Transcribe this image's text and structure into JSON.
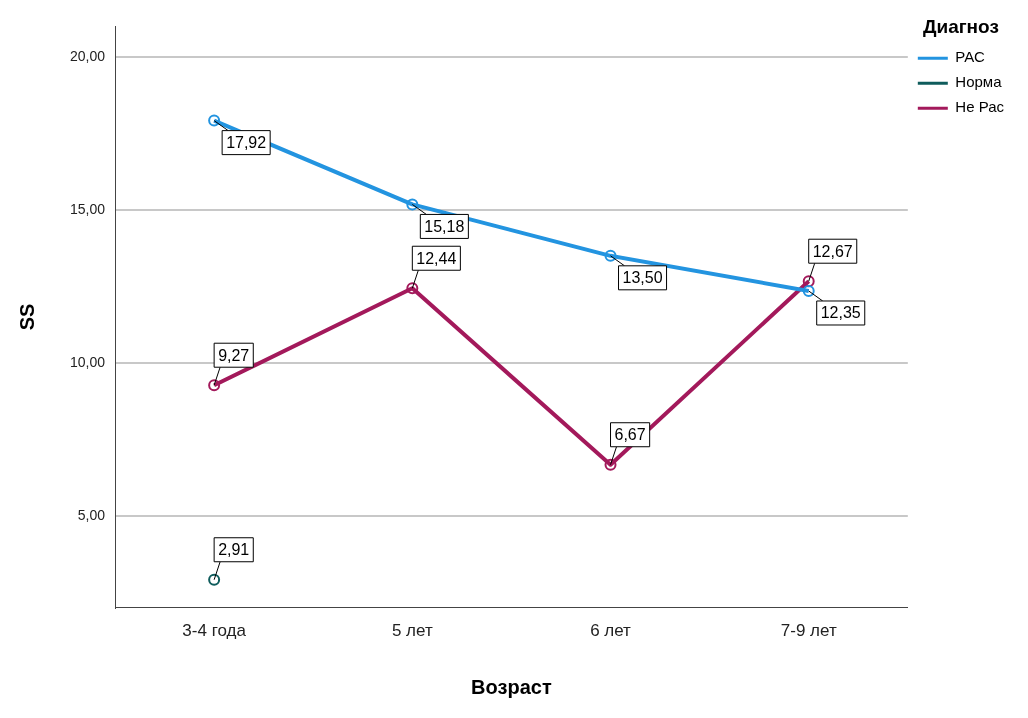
{
  "chart_data": {
    "type": "line",
    "xlabel": "Возраст",
    "ylabel": "SS",
    "legend_title": "Диагноз",
    "categories": [
      "3-4 года",
      "5 лет",
      "6 лет",
      "7-9 лет"
    ],
    "series": [
      {
        "name": "РАС",
        "color": "#2394e0",
        "values": [
          17.92,
          15.18,
          13.5,
          12.35
        ],
        "value_labels": [
          "17,92",
          "15,18",
          "13,50",
          "12,35"
        ]
      },
      {
        "name": "Норма",
        "color": "#0f5c5c",
        "values": [
          2.91,
          null,
          null,
          null
        ],
        "value_labels": [
          "2,91",
          null,
          null,
          null
        ]
      },
      {
        "name": "Не Рас",
        "color": "#a3195b",
        "values": [
          9.27,
          12.44,
          6.67,
          12.67
        ],
        "value_labels": [
          "9,27",
          "12,44",
          "6,67",
          "12,67"
        ]
      }
    ],
    "ylim": [
      2,
      21
    ],
    "yticks": [
      {
        "value": 5,
        "label": "5,00"
      },
      {
        "value": 10,
        "label": "10,00"
      },
      {
        "value": 15,
        "label": "15,00"
      },
      {
        "value": 20,
        "label": "20,00"
      }
    ],
    "grid": "y",
    "legend": "top right",
    "marker": "circle",
    "line_style": "solid"
  }
}
